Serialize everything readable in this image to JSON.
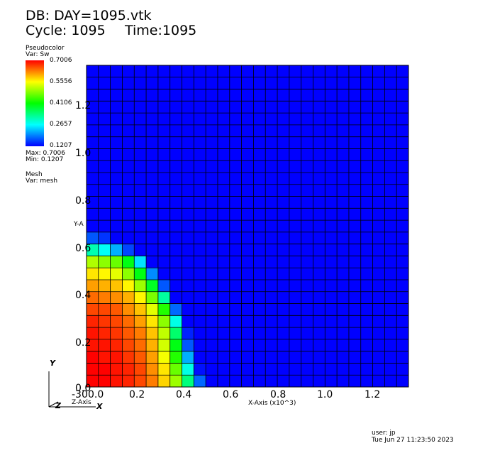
{
  "header": {
    "db_line": "DB: DAY=1095.vtk",
    "cycle_label": "Cycle: 1095",
    "time_label": "Time:1095"
  },
  "legend": {
    "plot_type": "Pseudocolor",
    "var_line": "Var: Sw",
    "ticks": [
      "0.7006",
      "0.5556",
      "0.4106",
      "0.2657",
      "0.1207"
    ],
    "max_line": "Max:  0.7006",
    "min_line": "Min:  0.1207",
    "mesh_title": "Mesh",
    "mesh_var": "Var: mesh"
  },
  "axes": {
    "x_title": "X-Axis (x10^3)",
    "y_title": "Y-A",
    "x_ticks": [
      "0.0",
      "0.2",
      "0.4",
      "0.6",
      "0.8",
      "1.0",
      "1.2"
    ],
    "y_ticks": [
      "0.0",
      "0.2",
      "0.4",
      "0.6",
      "0.8",
      "1.0",
      "1.2"
    ],
    "z_offset_label": "-30",
    "z_axis_label": "Z-Axis",
    "triad": {
      "y": "Y",
      "z": "Z",
      "x": "X"
    }
  },
  "footer": {
    "user": "user: jp",
    "timestamp": "Tue Jun 27 11:23:50 2023"
  },
  "chart_data": {
    "type": "heatmap",
    "variable": "Sw",
    "min": 0.1207,
    "max": 0.7006,
    "grid_columns": 27,
    "grid_rows": 27,
    "cell_size_x10_3": 0.05,
    "colormap": [
      "#0000ff",
      "#00ffff",
      "#00ff00",
      "#ffff00",
      "#ff0000"
    ],
    "rows_from_bottom": [
      [
        0.7,
        0.7,
        0.69,
        0.68,
        0.66,
        0.63,
        0.58,
        0.5,
        0.34,
        0.18
      ],
      [
        0.7,
        0.7,
        0.69,
        0.68,
        0.66,
        0.62,
        0.57,
        0.47,
        0.28,
        0.13
      ],
      [
        0.7,
        0.69,
        0.69,
        0.67,
        0.65,
        0.61,
        0.55,
        0.43,
        0.22
      ],
      [
        0.69,
        0.69,
        0.68,
        0.66,
        0.64,
        0.6,
        0.53,
        0.4,
        0.17
      ],
      [
        0.69,
        0.68,
        0.67,
        0.65,
        0.63,
        0.59,
        0.52,
        0.35,
        0.14
      ],
      [
        0.68,
        0.67,
        0.66,
        0.64,
        0.61,
        0.57,
        0.49,
        0.28
      ],
      [
        0.66,
        0.66,
        0.65,
        0.62,
        0.59,
        0.54,
        0.43,
        0.18
      ],
      [
        0.64,
        0.63,
        0.62,
        0.6,
        0.56,
        0.48,
        0.32
      ],
      [
        0.61,
        0.6,
        0.59,
        0.56,
        0.5,
        0.39,
        0.17
      ],
      [
        0.57,
        0.56,
        0.54,
        0.49,
        0.4,
        0.2
      ],
      [
        0.51,
        0.49,
        0.47,
        0.4,
        0.25
      ],
      [
        0.31,
        0.27,
        0.22,
        0.16
      ],
      [
        0.17,
        0.15
      ]
    ]
  }
}
